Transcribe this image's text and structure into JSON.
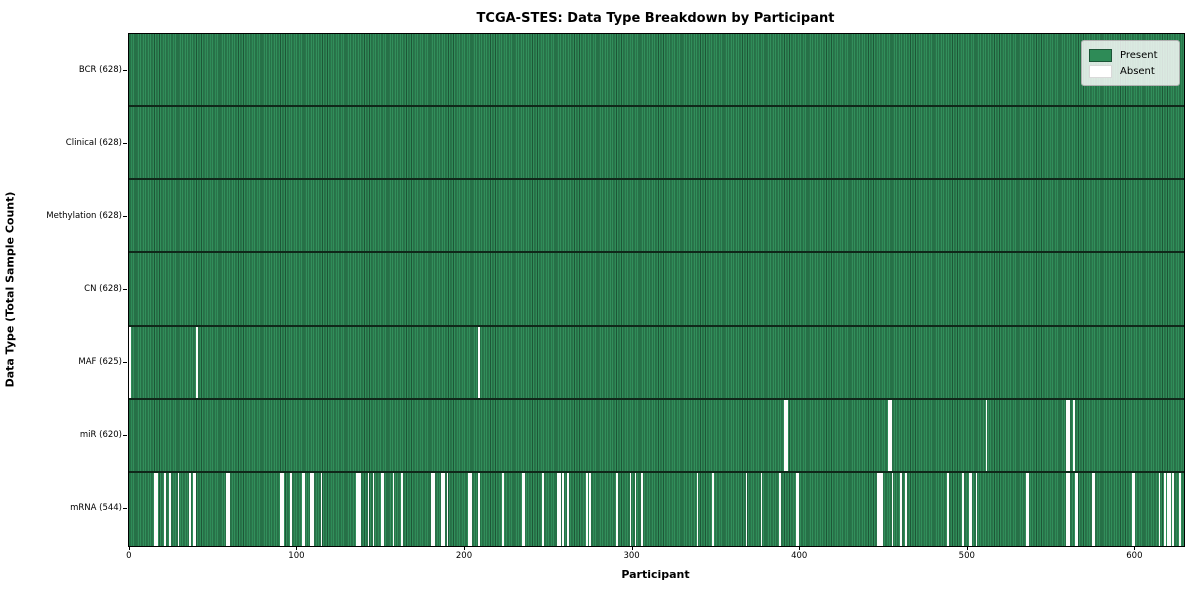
{
  "figure": {
    "title": "TCGA-STES: Data Type Breakdown by Participant",
    "xlabel": "Participant",
    "ylabel": "Data Type (Total Sample Count)"
  },
  "legend": {
    "position": "upper right",
    "items": [
      {
        "label": "Present",
        "color": "#2e8b57"
      },
      {
        "label": "Absent",
        "color": "#ffffff"
      }
    ]
  },
  "chart_data": {
    "type": "heatmap",
    "title": "TCGA-STES: Data Type Breakdown by Participant",
    "xlabel": "Participant",
    "ylabel": "Data Type (Total Sample Count)",
    "x_ticks": [
      0,
      100,
      200,
      300,
      400,
      500,
      600
    ],
    "xlim": [
      0,
      628
    ],
    "n_participants": 628,
    "grid": "row-separators",
    "legend_entries": [
      "Present",
      "Absent"
    ],
    "legend_position": "upper right",
    "colors": {
      "present": "#2e8b57",
      "present_edge": "#1d5737",
      "absent": "#ffffff"
    },
    "rows": [
      {
        "data_type": "BCR",
        "label": "BCR (628)",
        "present_count": 628,
        "absent_count": 0,
        "absent_indices": []
      },
      {
        "data_type": "Clinical",
        "label": "Clinical (628)",
        "present_count": 628,
        "absent_count": 0,
        "absent_indices": []
      },
      {
        "data_type": "Methylation",
        "label": "Methylation (628)",
        "present_count": 628,
        "absent_count": 0,
        "absent_indices": []
      },
      {
        "data_type": "CN",
        "label": "CN (628)",
        "present_count": 628,
        "absent_count": 0,
        "absent_indices": []
      },
      {
        "data_type": "MAF",
        "label": "MAF (625)",
        "present_count": 625,
        "absent_count": 3,
        "absent_indices": [
          0,
          40,
          208
        ]
      },
      {
        "data_type": "miR",
        "label": "miR (620)",
        "present_count": 620,
        "absent_count": 8,
        "absent_indices": [
          390,
          391,
          452,
          453,
          510,
          558,
          559,
          562
        ]
      },
      {
        "data_type": "mRNA",
        "label": "mRNA (544)",
        "present_count": 544,
        "absent_count": 84,
        "absent_indices": [
          15,
          16,
          21,
          24,
          29,
          36,
          38,
          39,
          58,
          59,
          90,
          91,
          96,
          103,
          104,
          108,
          109,
          114,
          135,
          136,
          137,
          142,
          145,
          150,
          151,
          157,
          162,
          180,
          181,
          186,
          187,
          189,
          202,
          203,
          208,
          222,
          234,
          235,
          246,
          255,
          256,
          258,
          261,
          272,
          274,
          290,
          298,
          301,
          305,
          338,
          347,
          367,
          376,
          387,
          397,
          398,
          445,
          446,
          447,
          448,
          454,
          459,
          462,
          487,
          496,
          500,
          501,
          504,
          534,
          535,
          558,
          559,
          563,
          564,
          573,
          574,
          597,
          598,
          613,
          616,
          618,
          619,
          621,
          625
        ]
      }
    ]
  }
}
